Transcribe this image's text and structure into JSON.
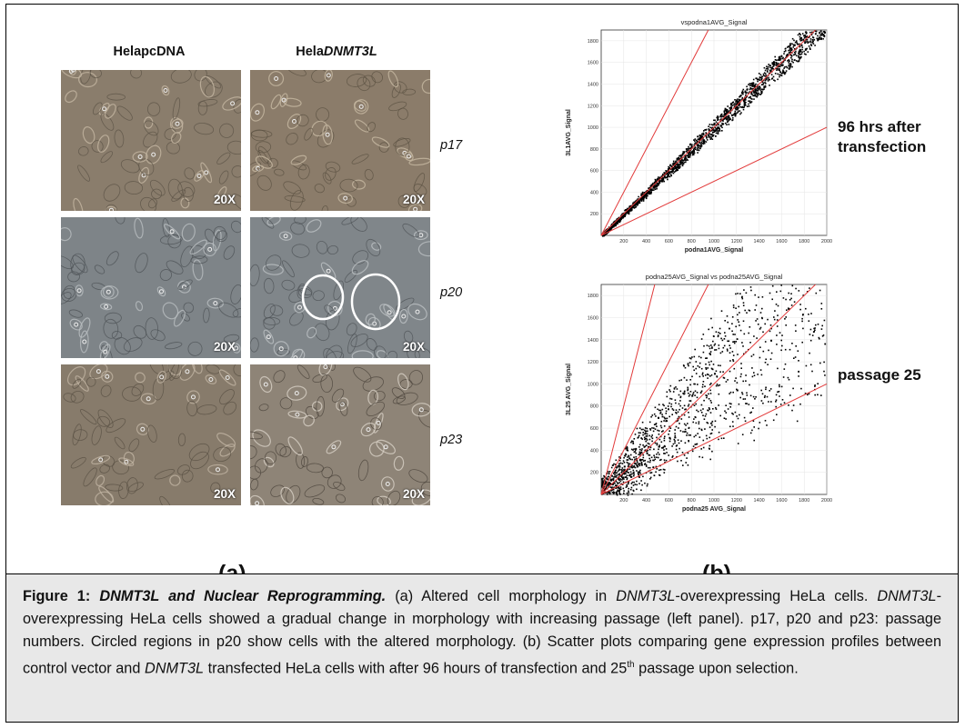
{
  "panel_a": {
    "col_headers": [
      "HelapcDNA",
      "Hela",
      "DNMT3L"
    ],
    "passages": [
      "p17",
      "p20",
      "p23"
    ],
    "magnification": "20X",
    "label": "(a)"
  },
  "panel_b": {
    "label": "(b)",
    "plot_labels": [
      "96 hrs after transfection",
      "passage 25"
    ],
    "label_lines": [
      "96 hrs after",
      "transfection",
      "passage 25"
    ]
  },
  "caption": {
    "title": "Figure 1:",
    "title_em": "DNMT3L and Nuclear Reprogramming.",
    "s1": " (a) Altered cell morphology in ",
    "g1": "DNMT3L",
    "s2": "-overexpressing HeLa cells. ",
    "g2": "DNMT3L",
    "s3": "-overexpressing HeLa cells showed a gradual change in morphology with increasing passage (left panel). p17, p20 and p23: passage numbers. Circled regions in p20 show cells with the altered morphology. (b) Scatter plots comparing gene expression profiles between control vector and ",
    "g3": "DNMT3L",
    "s4": " transfected HeLa cells with after 96 hours of transfection and 25",
    "sup": "th",
    "s5": " passage upon selection."
  },
  "chart_data": [
    {
      "type": "scatter",
      "title": "vspodna1AVG_Signal",
      "xlabel": "podna1AVG_Signal",
      "ylabel": "3L1AVG_Signal",
      "xlim": [
        0,
        2000
      ],
      "ylim": [
        0,
        1900
      ],
      "xticks": [
        "200",
        "400",
        "600",
        "800",
        "1000",
        "1200",
        "1400",
        "1600",
        "1800",
        "2000"
      ],
      "yticks": [
        "200",
        "400",
        "600",
        "800",
        "1000",
        "1200",
        "1400",
        "1600",
        "1800"
      ],
      "reference_line_slopes": [
        0.5,
        1,
        2
      ],
      "spread": 0.07,
      "points": [
        [
          120,
          130
        ],
        [
          250,
          240
        ],
        [
          400,
          420
        ],
        [
          600,
          590
        ],
        [
          800,
          820
        ],
        [
          1000,
          980
        ],
        [
          1200,
          1230
        ],
        [
          1400,
          1370
        ],
        [
          1600,
          1610
        ],
        [
          1800,
          1790
        ]
      ]
    },
    {
      "type": "scatter",
      "title": "podna25AVG_Signal vs podna25AVG_Signal",
      "xlabel": "podna25 AVG_Signal",
      "ylabel": "3L25 AVG_Signal",
      "xlim": [
        0,
        2000
      ],
      "ylim": [
        0,
        1900
      ],
      "xticks": [
        "200",
        "400",
        "600",
        "800",
        "1000",
        "1200",
        "1400",
        "1600",
        "1800",
        "2000"
      ],
      "yticks": [
        "200",
        "400",
        "600",
        "800",
        "1000",
        "1200",
        "1400",
        "1600",
        "1800"
      ],
      "reference_line_slopes": [
        0.5,
        1,
        2,
        4
      ],
      "spread": 0.55,
      "points": [
        [
          100,
          150
        ],
        [
          200,
          260
        ],
        [
          300,
          420
        ],
        [
          400,
          380
        ],
        [
          500,
          700
        ],
        [
          600,
          520
        ],
        [
          800,
          900
        ],
        [
          1000,
          1100
        ],
        [
          1200,
          950
        ],
        [
          1500,
          1400
        ]
      ]
    }
  ]
}
